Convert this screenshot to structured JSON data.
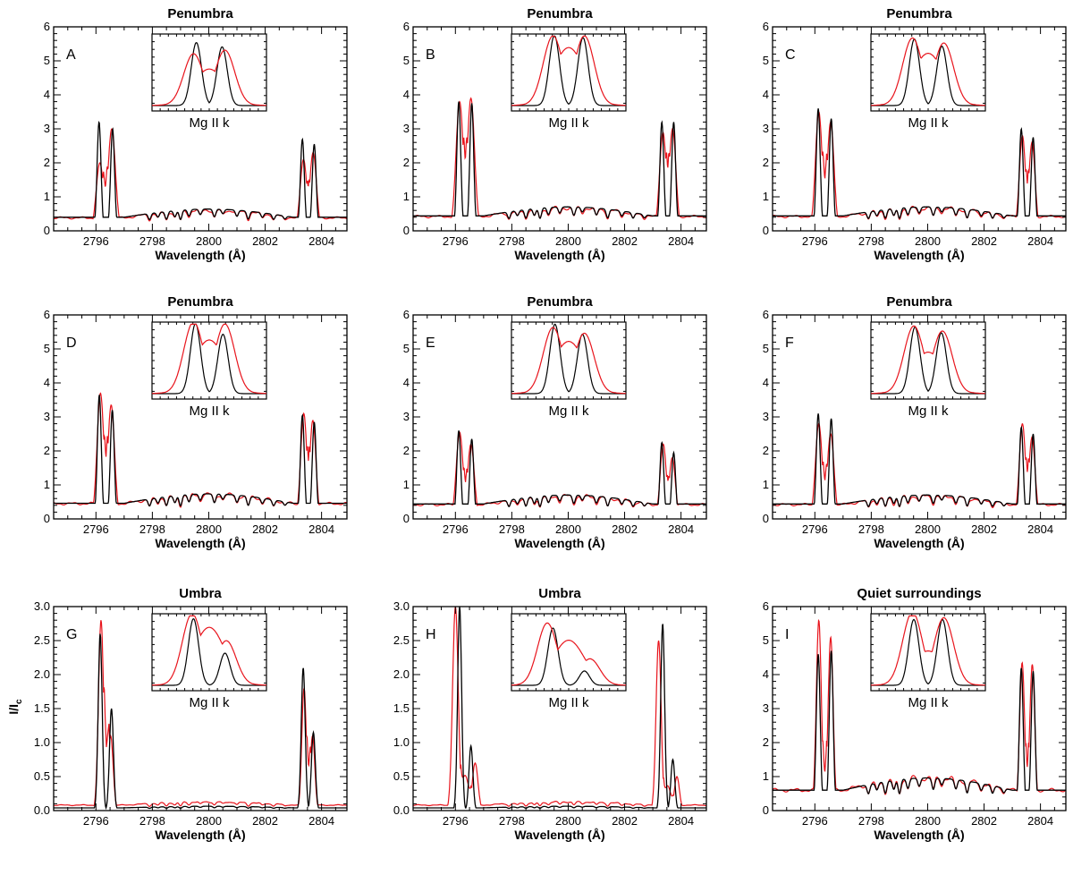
{
  "figure": {
    "ylabel": "I/I",
    "ylabel_subscript": "c",
    "colors": {
      "observed": "#e8141c",
      "synthetic": "#000000",
      "axis": "#000000"
    }
  },
  "chart_data": [
    {
      "panel": "A",
      "title": "Penumbra",
      "type": "line",
      "xlabel": "Wavelength (Å)",
      "xlim": [
        2794.5,
        2804.9
      ],
      "xticks": [
        2796,
        2798,
        2800,
        2802,
        2804
      ],
      "ylim": [
        0,
        6
      ],
      "yticks": [
        "0",
        "1",
        "2",
        "3",
        "4",
        "5",
        "6"
      ],
      "inset_label": "Mg II k",
      "series": [
        {
          "color": "red",
          "k": {
            "peaks": [
              2.0,
              3.0
            ],
            "sep": 0.42,
            "core": 2.0,
            "width": 0.13
          },
          "h": {
            "peaks": [
              2.1,
              2.3
            ],
            "sep": 0.34,
            "core": 1.5,
            "width": 0.12
          },
          "continuum": 0.38
        },
        {
          "color": "black",
          "k": {
            "peaks": [
              3.2,
              3.0
            ],
            "sep": 0.48,
            "core": 0.05,
            "width": 0.07
          },
          "h": {
            "peaks": [
              2.7,
              2.55
            ],
            "sep": 0.42,
            "core": 0.05,
            "width": 0.07
          },
          "continuum": 0.4
        }
      ],
      "inset": {
        "red": {
          "peaks": [
            0.7,
            0.75
          ],
          "sep": 0.55,
          "dip": 0.48
        },
        "black": {
          "peaks": [
            0.88,
            0.82
          ],
          "sep": 0.45,
          "dip": 0.05
        }
      }
    },
    {
      "panel": "B",
      "title": "Penumbra",
      "type": "line",
      "xlabel": "Wavelength (Å)",
      "xlim": [
        2794.5,
        2804.9
      ],
      "xticks": [
        2796,
        2798,
        2800,
        2802,
        2804
      ],
      "ylim": [
        0,
        6
      ],
      "yticks": [
        "0",
        "1",
        "2",
        "3",
        "4",
        "5",
        "6"
      ],
      "inset_label": "Mg II k",
      "series": [
        {
          "color": "red",
          "k": {
            "peaks": [
              3.8,
              3.9
            ],
            "sep": 0.4,
            "core": 2.9,
            "width": 0.13
          },
          "h": {
            "peaks": [
              2.9,
              3.0
            ],
            "sep": 0.34,
            "core": 2.4,
            "width": 0.12
          },
          "continuum": 0.42
        },
        {
          "color": "black",
          "k": {
            "peaks": [
              3.8,
              3.75
            ],
            "sep": 0.46,
            "core": 0.05,
            "width": 0.07
          },
          "h": {
            "peaks": [
              3.2,
              3.2
            ],
            "sep": 0.42,
            "core": 0.05,
            "width": 0.07
          },
          "continuum": 0.44
        }
      ],
      "inset": {
        "red": {
          "peaks": [
            0.95,
            0.95
          ],
          "sep": 0.55,
          "dip": 0.78
        },
        "black": {
          "peaks": [
            0.98,
            0.95
          ],
          "sep": 0.5,
          "dip": 0.05
        }
      }
    },
    {
      "panel": "C",
      "title": "Penumbra",
      "type": "line",
      "xlabel": "Wavelength (Å)",
      "xlim": [
        2794.5,
        2804.9
      ],
      "xticks": [
        2796,
        2798,
        2800,
        2802,
        2804
      ],
      "ylim": [
        0,
        6
      ],
      "yticks": [
        "0",
        "1",
        "2",
        "3",
        "4",
        "5",
        "6"
      ],
      "inset_label": "Mg II k",
      "series": [
        {
          "color": "red",
          "k": {
            "peaks": [
              3.5,
              3.2
            ],
            "sep": 0.42,
            "core": 2.6,
            "width": 0.12
          },
          "h": {
            "peaks": [
              2.8,
              2.6
            ],
            "sep": 0.34,
            "core": 1.9,
            "width": 0.11
          },
          "continuum": 0.42
        },
        {
          "color": "black",
          "k": {
            "peaks": [
              3.6,
              3.3
            ],
            "sep": 0.46,
            "core": 0.05,
            "width": 0.07
          },
          "h": {
            "peaks": [
              3.0,
              2.75
            ],
            "sep": 0.42,
            "core": 0.05,
            "width": 0.07
          },
          "continuum": 0.44
        }
      ],
      "inset": {
        "red": {
          "peaks": [
            0.92,
            0.85
          ],
          "sep": 0.55,
          "dip": 0.7
        },
        "black": {
          "peaks": [
            0.93,
            0.83
          ],
          "sep": 0.48,
          "dip": 0.05
        }
      }
    },
    {
      "panel": "D",
      "title": "Penumbra",
      "type": "line",
      "xlabel": "Wavelength (Å)",
      "xlim": [
        2794.5,
        2804.9
      ],
      "xticks": [
        2796,
        2798,
        2800,
        2802,
        2804
      ],
      "ylim": [
        0,
        6
      ],
      "yticks": [
        "0",
        "1",
        "2",
        "3",
        "4",
        "5",
        "6"
      ],
      "inset_label": "Mg II k",
      "series": [
        {
          "color": "red",
          "k": {
            "peaks": [
              3.7,
              3.35
            ],
            "sep": 0.38,
            "core": 2.6,
            "width": 0.12
          },
          "h": {
            "peaks": [
              3.1,
              2.9
            ],
            "sep": 0.32,
            "core": 2.2,
            "width": 0.11
          },
          "continuum": 0.45
        },
        {
          "color": "black",
          "k": {
            "peaks": [
              3.65,
              3.2
            ],
            "sep": 0.46,
            "core": 0.05,
            "width": 0.07
          },
          "h": {
            "peaks": [
              3.05,
              2.85
            ],
            "sep": 0.42,
            "core": 0.05,
            "width": 0.07
          },
          "continuum": 0.46
        }
      ],
      "inset": {
        "red": {
          "peaks": [
            0.98,
            0.95
          ],
          "sep": 0.55,
          "dip": 0.72
        },
        "black": {
          "peaks": [
            0.98,
            0.83
          ],
          "sep": 0.48,
          "dip": 0.05
        }
      }
    },
    {
      "panel": "E",
      "title": "Penumbra",
      "type": "line",
      "xlabel": "Wavelength (Å)",
      "xlim": [
        2794.5,
        2804.9
      ],
      "xticks": [
        2796,
        2798,
        2800,
        2802,
        2804
      ],
      "ylim": [
        0,
        6
      ],
      "yticks": [
        "0",
        "1",
        "2",
        "3",
        "4",
        "5",
        "6"
      ],
      "inset_label": "Mg II k",
      "series": [
        {
          "color": "red",
          "k": {
            "peaks": [
              2.55,
              2.2
            ],
            "sep": 0.4,
            "core": 1.6,
            "width": 0.12
          },
          "h": {
            "peaks": [
              2.2,
              1.8
            ],
            "sep": 0.32,
            "core": 1.3,
            "width": 0.11
          },
          "continuum": 0.42
        },
        {
          "color": "black",
          "k": {
            "peaks": [
              2.6,
              2.35
            ],
            "sep": 0.46,
            "core": 0.05,
            "width": 0.07
          },
          "h": {
            "peaks": [
              2.25,
              1.95
            ],
            "sep": 0.42,
            "core": 0.05,
            "width": 0.07
          },
          "continuum": 0.44
        }
      ],
      "inset": {
        "red": {
          "peaks": [
            0.9,
            0.82
          ],
          "sep": 0.55,
          "dip": 0.7
        },
        "black": {
          "peaks": [
            0.97,
            0.83
          ],
          "sep": 0.48,
          "dip": 0.05
        }
      }
    },
    {
      "panel": "F",
      "title": "Penumbra",
      "type": "line",
      "xlabel": "Wavelength (Å)",
      "xlim": [
        2794.5,
        2804.9
      ],
      "xticks": [
        2796,
        2798,
        2800,
        2802,
        2804
      ],
      "ylim": [
        0,
        6
      ],
      "yticks": [
        "0",
        "1",
        "2",
        "3",
        "4",
        "5",
        "6"
      ],
      "inset_label": "Mg II k",
      "series": [
        {
          "color": "red",
          "k": {
            "peaks": [
              2.8,
              2.5
            ],
            "sep": 0.42,
            "core": 1.8,
            "width": 0.12
          },
          "h": {
            "peaks": [
              2.8,
              2.4
            ],
            "sep": 0.34,
            "core": 1.9,
            "width": 0.11
          },
          "continuum": 0.42
        },
        {
          "color": "black",
          "k": {
            "peaks": [
              3.1,
              2.95
            ],
            "sep": 0.46,
            "core": 0.05,
            "width": 0.07
          },
          "h": {
            "peaks": [
              2.7,
              2.5
            ],
            "sep": 0.42,
            "core": 0.05,
            "width": 0.07
          },
          "continuum": 0.44
        }
      ],
      "inset": {
        "red": {
          "peaks": [
            0.92,
            0.85
          ],
          "sep": 0.5,
          "dip": 0.55
        },
        "black": {
          "peaks": [
            0.93,
            0.85
          ],
          "sep": 0.46,
          "dip": 0.05
        }
      }
    },
    {
      "panel": "G",
      "title": "Umbra",
      "type": "line",
      "xlabel": "Wavelength (Å)",
      "xlim": [
        2794.5,
        2804.9
      ],
      "xticks": [
        2796,
        2798,
        2800,
        2802,
        2804
      ],
      "ylim": [
        0,
        3
      ],
      "yticks": [
        "0.0",
        "0.5",
        "1.0",
        "1.5",
        "2.0",
        "2.5",
        "3.0"
      ],
      "inset_label": "Mg II k",
      "series": [
        {
          "color": "red",
          "k": {
            "peaks": [
              2.8,
              1.1
            ],
            "sep": 0.34,
            "core": 2.2,
            "width": 0.09
          },
          "h": {
            "peaks": [
              1.8,
              1.1
            ],
            "sep": 0.3,
            "core": 1.3,
            "width": 0.08
          },
          "continuum": 0.08
        },
        {
          "color": "black",
          "k": {
            "peaks": [
              2.6,
              1.5
            ],
            "sep": 0.4,
            "core": 0.05,
            "width": 0.07
          },
          "h": {
            "peaks": [
              2.1,
              1.15
            ],
            "sep": 0.36,
            "core": 0.05,
            "width": 0.07
          },
          "continuum": 0.04
        }
      ],
      "inset": {
        "red": {
          "peaks": [
            0.98,
            0.6
          ],
          "sep": 0.6,
          "dip": 0.78
        },
        "black": {
          "peaks": [
            0.93,
            0.45
          ],
          "sep": 0.55,
          "dip": 0.05
        }
      }
    },
    {
      "panel": "H",
      "title": "Umbra",
      "type": "line",
      "xlabel": "Wavelength (Å)",
      "xlim": [
        2794.5,
        2804.9
      ],
      "xticks": [
        2796,
        2798,
        2800,
        2802,
        2804
      ],
      "ylim": [
        0,
        3
      ],
      "yticks": [
        "0.0",
        "0.5",
        "1.0",
        "1.5",
        "2.0",
        "2.5",
        "3.0"
      ],
      "inset_label": "Mg II k",
      "series": [
        {
          "color": "red",
          "k": {
            "peaks": [
              3.0,
              0.7
            ],
            "sep": 0.7,
            "core": 1.7,
            "width": 0.1
          },
          "h": {
            "peaks": [
              2.5,
              0.5
            ],
            "sep": 0.65,
            "core": 1.2,
            "width": 0.09
          },
          "continuum": 0.08
        },
        {
          "color": "black",
          "k": {
            "peaks": [
              3.0,
              0.95
            ],
            "sep": 0.4,
            "core": 0.05,
            "width": 0.07
          },
          "h": {
            "peaks": [
              2.75,
              0.75
            ],
            "sep": 0.36,
            "core": 0.05,
            "width": 0.07
          },
          "continuum": 0.04
        }
      ],
      "inset": {
        "red": {
          "peaks": [
            0.85,
            0.35
          ],
          "sep": 0.75,
          "dip": 0.6
        },
        "black": {
          "peaks": [
            0.8,
            0.2
          ],
          "sep": 0.55,
          "dip": 0.05
        }
      }
    },
    {
      "panel": "I",
      "title": "Quiet surroundings",
      "type": "line",
      "xlabel": "Wavelength (Å)",
      "xlim": [
        2794.5,
        2804.9
      ],
      "xticks": [
        2796,
        2798,
        2800,
        2802,
        2804
      ],
      "ylim": [
        0,
        6
      ],
      "yticks": [
        "0",
        "1",
        "2",
        "3",
        "4",
        "5",
        "6"
      ],
      "inset_label": "Mg II k",
      "series": [
        {
          "color": "red",
          "k": {
            "peaks": [
              5.6,
              5.1
            ],
            "sep": 0.42,
            "core": 2.5,
            "width": 0.09
          },
          "h": {
            "peaks": [
              4.35,
              4.3
            ],
            "sep": 0.36,
            "core": 2.2,
            "width": 0.09
          },
          "continuum": 0.6
        },
        {
          "color": "black",
          "k": {
            "peaks": [
              4.6,
              4.7
            ],
            "sep": 0.46,
            "core": 0.05,
            "width": 0.07
          },
          "h": {
            "peaks": [
              4.2,
              4.1
            ],
            "sep": 0.42,
            "core": 0.05,
            "width": 0.07
          },
          "continuum": 0.6
        }
      ],
      "inset": {
        "red": {
          "peaks": [
            1.0,
            0.92
          ],
          "sep": 0.55,
          "dip": 0.45
        },
        "black": {
          "peaks": [
            0.92,
            0.92
          ],
          "sep": 0.5,
          "dip": 0.05
        }
      }
    }
  ]
}
